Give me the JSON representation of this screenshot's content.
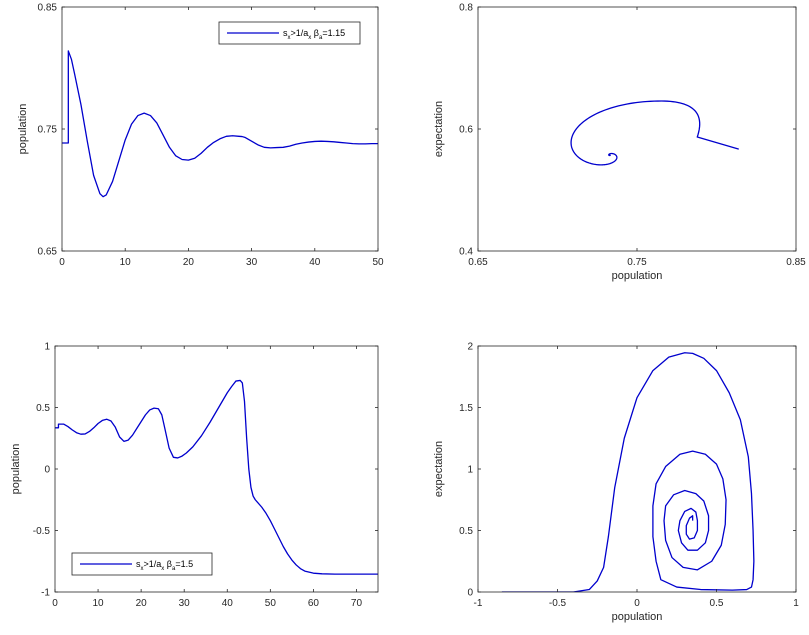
{
  "colors": {
    "line": "#0000CD",
    "axes": "#262626",
    "background": "#ffffff"
  },
  "chart_data": [
    {
      "type": "line",
      "xlabel": "",
      "ylabel": "population",
      "xlim": [
        0,
        50
      ],
      "ylim": [
        0.65,
        0.85
      ],
      "xticks": [
        0,
        10,
        20,
        30,
        40,
        50
      ],
      "xtick_labels": [
        "0",
        "10",
        "20",
        "30",
        "40",
        "50"
      ],
      "yticks": [
        0.65,
        0.75,
        0.85
      ],
      "ytick_labels": [
        "0.65",
        "0.75",
        "0.85"
      ],
      "legend": {
        "placement": "top-right",
        "label": "s_x>1/a_x β_a=1.15",
        "parts": [
          "s",
          "x",
          ">1/a",
          "x",
          " β",
          "a",
          "=1.15"
        ]
      },
      "x": [
        0,
        1,
        1,
        1.5,
        2,
        3,
        4,
        5,
        6,
        6.5,
        7,
        8,
        9,
        10,
        11,
        12,
        13,
        14,
        15,
        16,
        17,
        18,
        19,
        20,
        21,
        22,
        23,
        24,
        25,
        26,
        27,
        28,
        28.5,
        29,
        30,
        31,
        32,
        33,
        34,
        35,
        36,
        37,
        38,
        39,
        40,
        41,
        42,
        43,
        44,
        45,
        46,
        47,
        48,
        49,
        50
      ],
      "y": [
        0.7385,
        0.7385,
        0.814,
        0.807,
        0.795,
        0.77,
        0.74,
        0.712,
        0.697,
        0.6945,
        0.696,
        0.707,
        0.724,
        0.741,
        0.754,
        0.761,
        0.763,
        0.761,
        0.755,
        0.745,
        0.735,
        0.728,
        0.725,
        0.7245,
        0.726,
        0.73,
        0.735,
        0.739,
        0.742,
        0.744,
        0.7445,
        0.744,
        0.7438,
        0.743,
        0.74,
        0.737,
        0.735,
        0.7345,
        0.7348,
        0.735,
        0.736,
        0.7375,
        0.7385,
        0.7393,
        0.7398,
        0.74,
        0.7398,
        0.7395,
        0.739,
        0.7385,
        0.738,
        0.7378,
        0.7378,
        0.738,
        0.738
      ]
    },
    {
      "type": "line",
      "xlabel": "population",
      "ylabel": "expectation",
      "xlim": [
        0.65,
        0.85
      ],
      "ylim": [
        0.4,
        0.8
      ],
      "xticks": [
        0.65,
        0.75,
        0.85
      ],
      "xtick_labels": [
        "0.65",
        "0.75",
        "0.85"
      ],
      "yticks": [
        0.4,
        0.6,
        0.8
      ],
      "ytick_labels": [
        "0.4",
        "0.6",
        "0.8"
      ],
      "spiral": {
        "start": [
          0.814,
          0.567
        ],
        "center": [
          0.738,
          0.567
        ],
        "turns": 4.5,
        "decay": 0.55
      }
    },
    {
      "type": "line",
      "xlabel": "",
      "ylabel": "population",
      "xlim": [
        0,
        75
      ],
      "ylim": [
        -1,
        1
      ],
      "xticks": [
        0,
        10,
        20,
        30,
        40,
        50,
        60,
        70
      ],
      "xtick_labels": [
        "0",
        "10",
        "20",
        "30",
        "40",
        "50",
        "60",
        "70"
      ],
      "yticks": [
        -1,
        -0.5,
        0,
        0.5,
        1
      ],
      "ytick_labels": [
        "-1",
        "-0.5",
        "0",
        "0.5",
        "1"
      ],
      "legend": {
        "placement": "bottom-left",
        "label": "s_x>1/a_x β_a=1.5",
        "parts": [
          "s",
          "x",
          ">1/a",
          "x",
          " β",
          "a",
          "=1.5"
        ]
      },
      "x": [
        0,
        0.8,
        0.8,
        2,
        3,
        4,
        5,
        6,
        7,
        8,
        9,
        10,
        11,
        12,
        13,
        14,
        15,
        16,
        17,
        18,
        19,
        20,
        21,
        22,
        23,
        24,
        24.8,
        25.5,
        26.5,
        27.5,
        28.5,
        29.5,
        30.5,
        32,
        34,
        36,
        38,
        40,
        41,
        42,
        43,
        43.5,
        44,
        44.5,
        45,
        45.5,
        46,
        46.5,
        47,
        48,
        49,
        50,
        51,
        52,
        53,
        54,
        55,
        56,
        57,
        58,
        60,
        62,
        65,
        70,
        75
      ],
      "y": [
        0.335,
        0.335,
        0.365,
        0.365,
        0.345,
        0.318,
        0.295,
        0.283,
        0.285,
        0.305,
        0.335,
        0.37,
        0.395,
        0.405,
        0.39,
        0.34,
        0.26,
        0.225,
        0.235,
        0.275,
        0.33,
        0.385,
        0.44,
        0.48,
        0.495,
        0.49,
        0.44,
        0.33,
        0.17,
        0.095,
        0.09,
        0.105,
        0.13,
        0.18,
        0.27,
        0.38,
        0.5,
        0.62,
        0.67,
        0.715,
        0.72,
        0.7,
        0.55,
        0.25,
        0.0,
        -0.15,
        -0.22,
        -0.25,
        -0.27,
        -0.31,
        -0.36,
        -0.42,
        -0.49,
        -0.56,
        -0.63,
        -0.69,
        -0.74,
        -0.78,
        -0.81,
        -0.83,
        -0.847,
        -0.852,
        -0.855,
        -0.855,
        -0.855
      ]
    },
    {
      "type": "line",
      "xlabel": "population",
      "ylabel": "expectation",
      "xlim": [
        -1,
        1
      ],
      "ylim": [
        0,
        2
      ],
      "xticks": [
        -1,
        -0.5,
        0,
        0.5,
        1
      ],
      "xtick_labels": [
        "-1",
        "-0.5",
        "0",
        "0.5",
        "1"
      ],
      "yticks": [
        0,
        0.5,
        1,
        1.5,
        2
      ],
      "ytick_labels": [
        "0",
        "0.5",
        "1",
        "1.5",
        "2"
      ],
      "x": [
        -0.85,
        -0.4,
        -0.3,
        -0.25,
        -0.21,
        -0.18,
        -0.14,
        -0.08,
        0.0,
        0.1,
        0.2,
        0.3,
        0.35,
        0.42,
        0.5,
        0.58,
        0.65,
        0.7,
        0.72,
        0.73,
        0.735,
        0.73,
        0.72,
        0.69,
        0.6,
        0.4,
        0.25,
        0.15,
        0.12,
        0.1,
        0.1,
        0.12,
        0.18,
        0.27,
        0.35,
        0.43,
        0.5,
        0.54,
        0.56,
        0.555,
        0.53,
        0.47,
        0.38,
        0.29,
        0.22,
        0.18,
        0.17,
        0.18,
        0.23,
        0.3,
        0.37,
        0.42,
        0.45,
        0.45,
        0.43,
        0.38,
        0.32,
        0.28,
        0.26,
        0.27,
        0.3,
        0.34,
        0.37,
        0.38,
        0.38,
        0.36,
        0.33,
        0.31,
        0.31,
        0.33,
        0.35,
        0.35
      ],
      "y": [
        0.0,
        0.0,
        0.02,
        0.09,
        0.2,
        0.45,
        0.85,
        1.25,
        1.58,
        1.8,
        1.91,
        1.945,
        1.94,
        1.9,
        1.8,
        1.62,
        1.4,
        1.1,
        0.8,
        0.5,
        0.25,
        0.1,
        0.04,
        0.02,
        0.015,
        0.02,
        0.04,
        0.1,
        0.25,
        0.45,
        0.7,
        0.88,
        1.02,
        1.12,
        1.145,
        1.12,
        1.04,
        0.92,
        0.75,
        0.55,
        0.38,
        0.25,
        0.18,
        0.2,
        0.28,
        0.42,
        0.58,
        0.7,
        0.79,
        0.825,
        0.8,
        0.74,
        0.62,
        0.5,
        0.4,
        0.34,
        0.34,
        0.4,
        0.5,
        0.58,
        0.655,
        0.68,
        0.65,
        0.58,
        0.5,
        0.44,
        0.43,
        0.47,
        0.54,
        0.6,
        0.62,
        0.58
      ]
    }
  ]
}
